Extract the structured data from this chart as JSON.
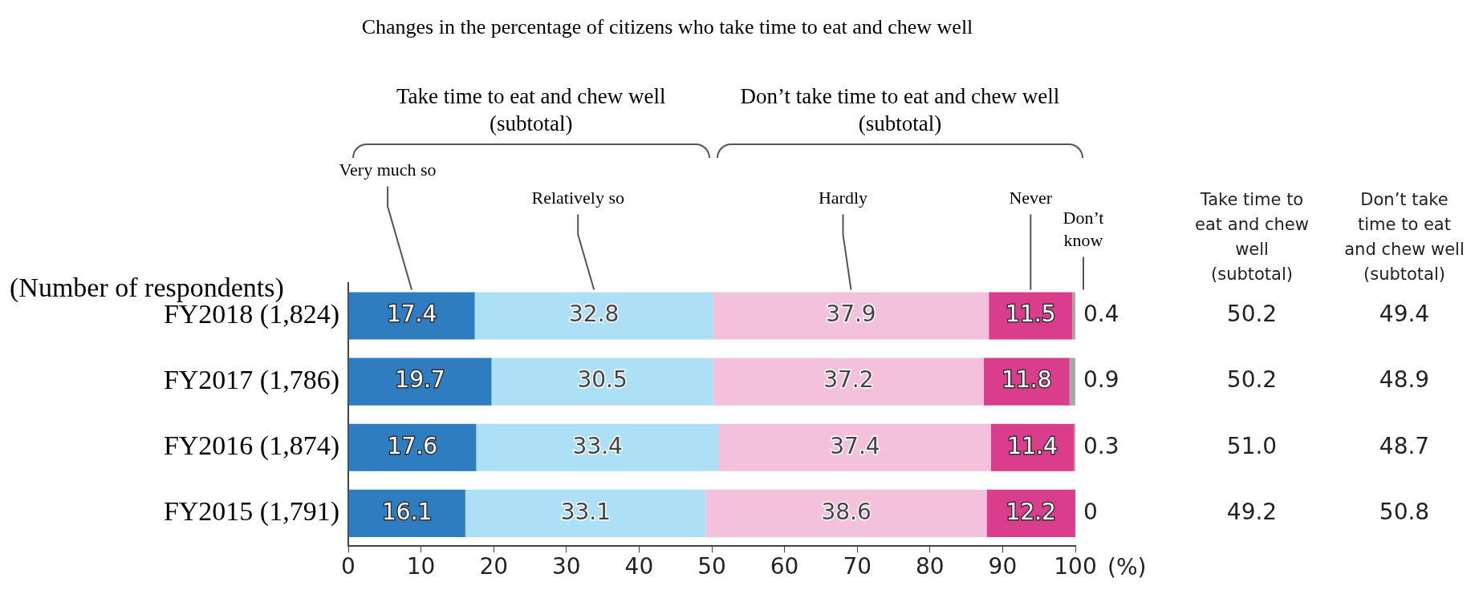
{
  "chart_data": {
    "type": "bar",
    "orientation": "horizontal",
    "stacked": true,
    "title": "Changes in the percentage of citizens who take time to eat and chew well",
    "ylabel": "(Number of respondents)",
    "xlabel": "(%)",
    "categories": [
      "FY2018 (1,824)",
      "FY2017 (1,786)",
      "FY2016 (1,874)",
      "FY2015 (1,791)"
    ],
    "series": [
      {
        "name": "Very much so",
        "color": "#2f7dc1",
        "values": [
          17.4,
          19.7,
          17.6,
          16.1
        ]
      },
      {
        "name": "Relatively so",
        "color": "#addff6",
        "values": [
          32.8,
          30.5,
          33.4,
          33.1
        ]
      },
      {
        "name": "Hardly",
        "color": "#f4c1dc",
        "values": [
          37.9,
          37.2,
          37.4,
          38.6
        ]
      },
      {
        "name": "Never",
        "color": "#d93d8c",
        "values": [
          11.5,
          11.8,
          11.4,
          12.2
        ]
      },
      {
        "name": "Don’t know",
        "color": "#a8a8a8",
        "values": [
          0.4,
          0.9,
          0.3,
          0
        ]
      }
    ],
    "data_labels": true,
    "grid": false,
    "legend": false,
    "xlim": [
      0,
      100
    ],
    "xticks": [
      0,
      10,
      20,
      30,
      40,
      50,
      60,
      70,
      80,
      90,
      100
    ],
    "annotations": [
      "Take time to eat and chew well (subtotal)",
      "Don’t take time to eat and chew well (subtotal)",
      "Take time to eat and chew well (subtotal)",
      "Don’t take time to eat and chew well (subtotal)",
      "50.2",
      "49.4",
      "50.2",
      "48.9",
      "51.0",
      "48.7",
      "49.2",
      "50.8"
    ]
  }
}
